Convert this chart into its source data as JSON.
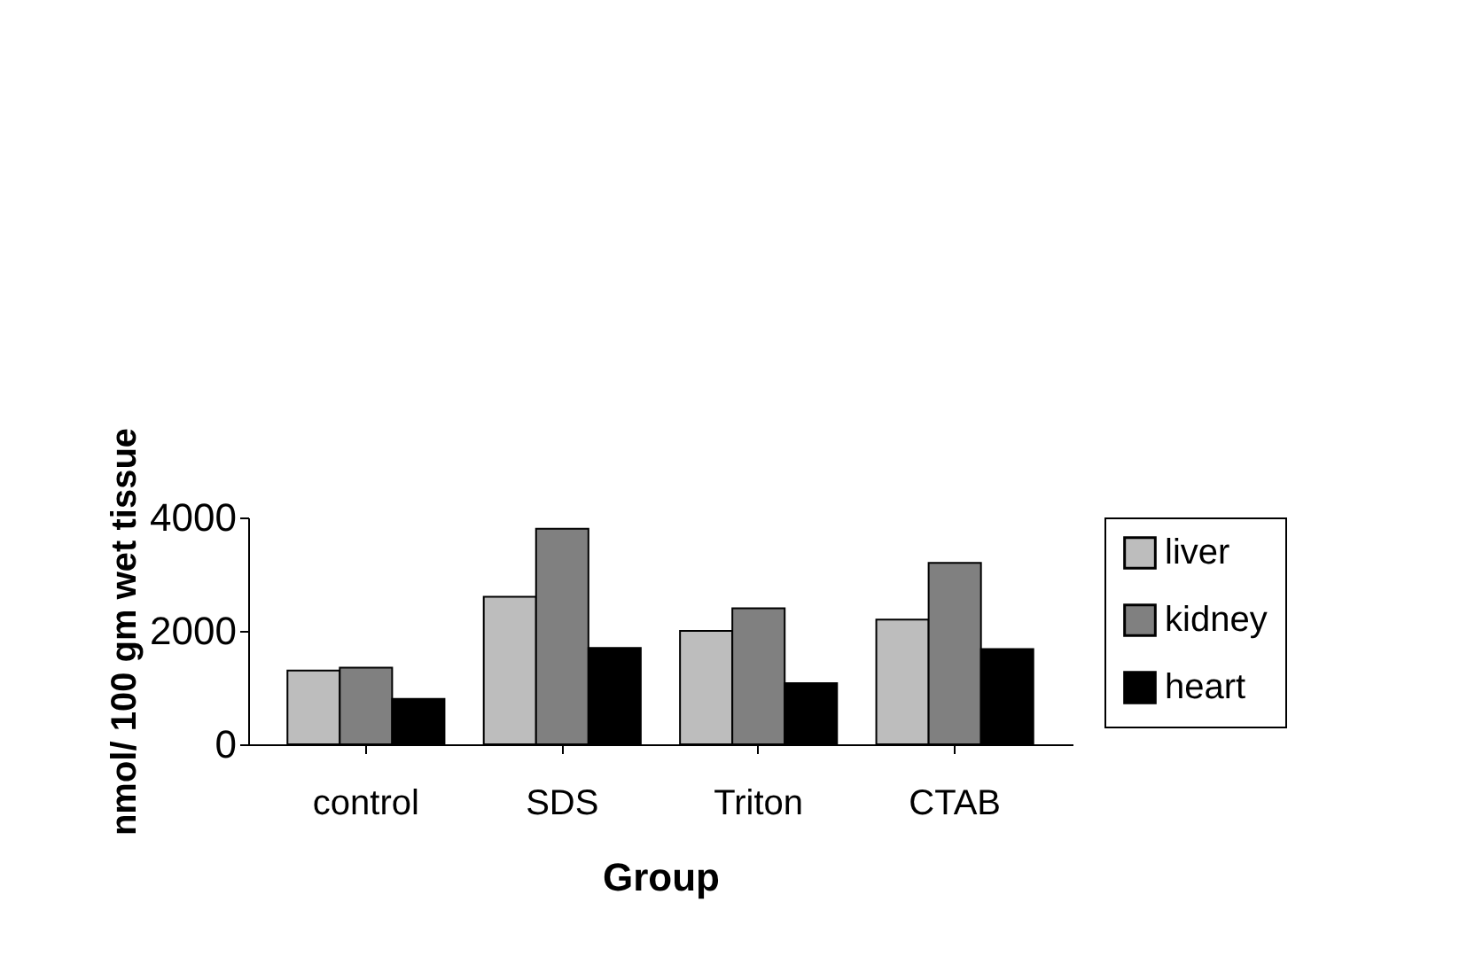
{
  "chart_data": {
    "type": "bar",
    "xlabel": "Group",
    "ylabel": "nmol/ 100 gm wet tissue",
    "categories": [
      "control",
      "SDS",
      "Triton",
      "CTAB"
    ],
    "series": [
      {
        "name": "liver",
        "color": "#bdbdbd",
        "values": [
          1300,
          2600,
          2000,
          2200
        ]
      },
      {
        "name": "kidney",
        "color": "#808080",
        "values": [
          1350,
          3800,
          2400,
          3200
        ]
      },
      {
        "name": "heart",
        "color": "#000000",
        "values": [
          800,
          1700,
          1080,
          1680
        ]
      }
    ],
    "ylim": [
      0,
      4000
    ],
    "yticks": [
      0,
      2000,
      4000
    ],
    "grid": false,
    "legend": "right"
  }
}
